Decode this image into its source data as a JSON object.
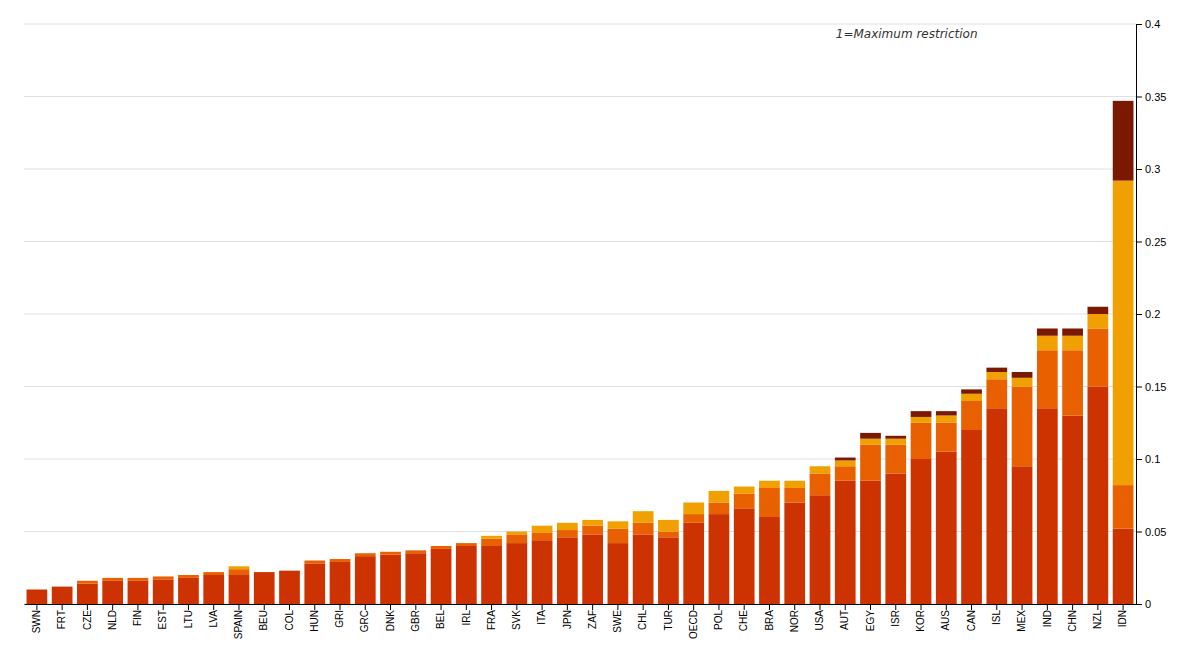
{
  "chart_data": {
    "type": "bar",
    "stacked": true,
    "grid": true,
    "annotation": "1=Maximum restriction",
    "categories": [
      "SWN",
      "FRT",
      "CZE",
      "NLD",
      "FIN",
      "EST",
      "LTU",
      "LVA",
      "SPAIN",
      "BEU",
      "COL",
      "HUN",
      "GRI",
      "GRC",
      "DNK",
      "GBR",
      "BEL",
      "IRL",
      "FRA",
      "SVK",
      "ITA",
      "JPN",
      "ZAF",
      "SWE",
      "CHL",
      "TUR",
      "OECD",
      "POL",
      "CHE",
      "BRA",
      "NOR",
      "USA",
      "AUT",
      "EGY",
      "ISR",
      "KOR",
      "AUS",
      "CAN",
      "ISL",
      "MEX",
      "IND",
      "CHN",
      "NZL",
      "IDN"
    ],
    "series": [
      {
        "color": "#cc3300",
        "values": [
          0.01,
          0.012,
          0.014,
          0.016,
          0.016,
          0.017,
          0.018,
          0.02,
          0.02,
          0.022,
          0.023,
          0.028,
          0.029,
          0.033,
          0.034,
          0.035,
          0.038,
          0.04,
          0.04,
          0.042,
          0.044,
          0.046,
          0.048,
          0.042,
          0.048,
          0.046,
          0.056,
          0.062,
          0.066,
          0.06,
          0.07,
          0.075,
          0.085,
          0.085,
          0.09,
          0.1,
          0.105,
          0.12,
          0.135,
          0.095,
          0.135,
          0.13,
          0.15,
          0.052
        ]
      },
      {
        "color": "#e86000",
        "values": [
          0.0,
          0.0,
          0.002,
          0.002,
          0.002,
          0.002,
          0.002,
          0.002,
          0.004,
          0.0,
          0.0,
          0.002,
          0.002,
          0.002,
          0.002,
          0.002,
          0.002,
          0.002,
          0.005,
          0.006,
          0.005,
          0.005,
          0.006,
          0.01,
          0.008,
          0.004,
          0.006,
          0.008,
          0.01,
          0.02,
          0.01,
          0.015,
          0.01,
          0.025,
          0.02,
          0.025,
          0.02,
          0.02,
          0.02,
          0.055,
          0.04,
          0.045,
          0.04,
          0.03
        ]
      },
      {
        "color": "#f0a000",
        "values": [
          0.0,
          0.0,
          0.0,
          0.0,
          0.0,
          0.0,
          0.0,
          0.0,
          0.002,
          0.0,
          0.0,
          0.0,
          0.0,
          0.0,
          0.0,
          0.0,
          0.0,
          0.0,
          0.002,
          0.002,
          0.005,
          0.005,
          0.004,
          0.005,
          0.008,
          0.008,
          0.008,
          0.008,
          0.005,
          0.005,
          0.005,
          0.005,
          0.004,
          0.004,
          0.004,
          0.004,
          0.005,
          0.005,
          0.005,
          0.006,
          0.01,
          0.01,
          0.01,
          0.21
        ]
      },
      {
        "color": "#7a1800",
        "values": [
          0.0,
          0.0,
          0.0,
          0.0,
          0.0,
          0.0,
          0.0,
          0.0,
          0.0,
          0.0,
          0.0,
          0.0,
          0.0,
          0.0,
          0.0,
          0.0,
          0.0,
          0.0,
          0.0,
          0.0,
          0.0,
          0.0,
          0.0,
          0.0,
          0.0,
          0.0,
          0.0,
          0.0,
          0.0,
          0.0,
          0.0,
          0.0,
          0.002,
          0.004,
          0.002,
          0.004,
          0.003,
          0.003,
          0.003,
          0.004,
          0.005,
          0.005,
          0.005,
          0.055
        ]
      }
    ],
    "ylim": [
      0,
      0.4
    ],
    "yticks": [
      0,
      0.05,
      0.1,
      0.15,
      0.2,
      0.25,
      0.3,
      0.35,
      0.4
    ]
  }
}
